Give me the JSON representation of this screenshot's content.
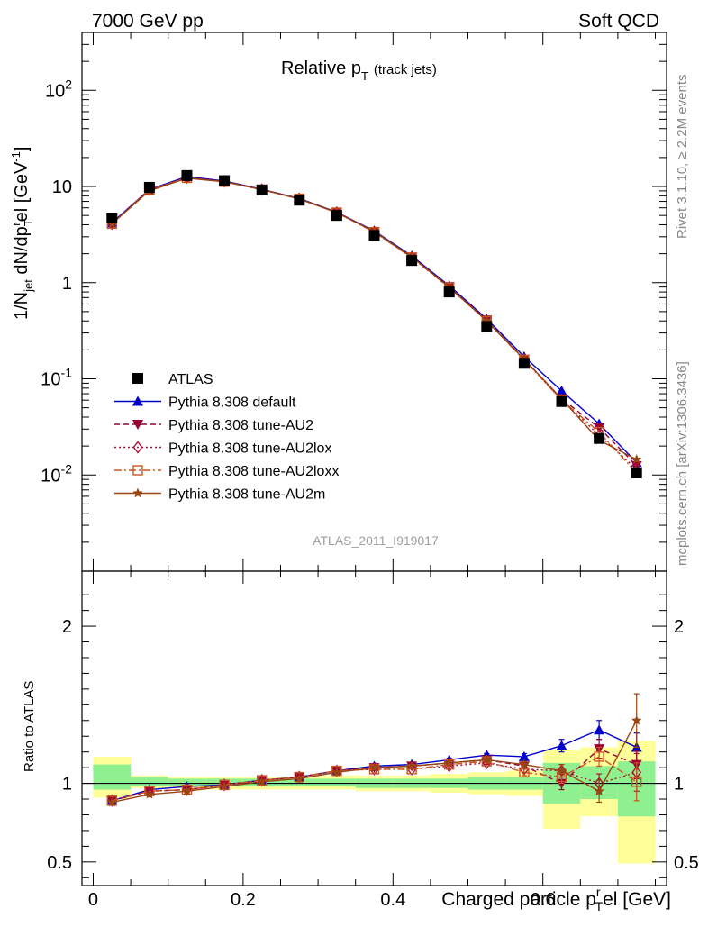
{
  "header": {
    "left": "7000 GeV pp",
    "right": "Soft QCD"
  },
  "side_labels": {
    "rivet": "Rivet 3.1.10, ≥ 2.2M events",
    "mcplots": "mcplots.cern.ch [arXiv:1306.3436]"
  },
  "watermark": "ATLAS_2011_I919017",
  "colors": {
    "ATLAS": "#000000",
    "default": "#0000cc",
    "AU2": "#990033",
    "AU2lox": "#aa1133",
    "AU2loxx": "#cc5522",
    "AU2m": "#994411",
    "band_inner": "#8ef08e",
    "band_outer": "#ffff99"
  },
  "chart_data": [
    {
      "type": "line",
      "panel": "main",
      "title": "Relative p_T (track jets)",
      "title_main": "Relative p",
      "title_sub": "T",
      "title_extra": "(track jets)",
      "ylabel": "1/N_jet dN/dp_T^rel [GeV^-1]",
      "yscale": "log",
      "ylim": [
        0.001,
        400
      ],
      "xlim": [
        -0.015,
        0.765
      ],
      "y_tick_labels": [
        "10^-2",
        "10^-1",
        "1",
        "10",
        "10^2"
      ],
      "legend_position": "bottom-left",
      "x": [
        0.025,
        0.075,
        0.125,
        0.175,
        0.225,
        0.275,
        0.325,
        0.375,
        0.425,
        0.475,
        0.525,
        0.575,
        0.625,
        0.675,
        0.725
      ],
      "series": [
        {
          "name": "ATLAS",
          "key": "ATLAS",
          "marker": "square",
          "line": "none",
          "values": [
            4.7,
            9.8,
            13.0,
            11.5,
            9.2,
            7.2,
            5.0,
            3.1,
            1.7,
            0.8,
            0.35,
            0.145,
            0.058,
            0.024,
            0.0105
          ]
        },
        {
          "name": "Pythia 8.308 default",
          "key": "default",
          "marker": "triangle-up",
          "line": "solid",
          "values": [
            4.2,
            9.3,
            12.7,
            11.4,
            9.35,
            7.5,
            5.4,
            3.45,
            1.9,
            0.93,
            0.42,
            0.17,
            0.075,
            0.034,
            0.0135
          ]
        },
        {
          "name": "Pythia 8.308 tune-AU2",
          "key": "AU2",
          "marker": "triangle-down",
          "line": "dashed",
          "values": [
            4.1,
            9.2,
            12.4,
            11.3,
            9.3,
            7.45,
            5.4,
            3.4,
            1.85,
            0.91,
            0.41,
            0.16,
            0.062,
            0.031,
            0.0125
          ]
        },
        {
          "name": "Pythia 8.308 tune-AU2lox",
          "key": "AU2lox",
          "marker": "diamond-open",
          "line": "dotted",
          "values": [
            4.1,
            9.3,
            12.4,
            11.3,
            9.3,
            7.45,
            5.35,
            3.38,
            1.83,
            0.89,
            0.4,
            0.16,
            0.06,
            0.026,
            0.0115
          ]
        },
        {
          "name": "Pythia 8.308 tune-AU2loxx",
          "key": "AU2loxx",
          "marker": "square-open",
          "line": "dashdot",
          "values": [
            4.1,
            9.2,
            12.3,
            11.2,
            9.25,
            7.45,
            5.35,
            3.35,
            1.82,
            0.89,
            0.4,
            0.157,
            0.06,
            0.028,
            0.0105
          ]
        },
        {
          "name": "Pythia 8.308 tune-AU2m",
          "key": "AU2m",
          "marker": "star",
          "line": "solid",
          "values": [
            4.1,
            9.0,
            12.2,
            11.2,
            9.3,
            7.4,
            5.35,
            3.4,
            1.85,
            0.9,
            0.4,
            0.16,
            0.062,
            0.023,
            0.0145
          ]
        }
      ]
    },
    {
      "type": "line",
      "panel": "ratio",
      "ylabel": "Ratio to ATLAS",
      "xlabel": "Charged particle p_T^rel [GeV]",
      "xlabel_main": "Charged particle p",
      "xlabel_sup": "r",
      "xlabel_sub": "T",
      "xlabel_tail": "el [GeV]",
      "ylim": [
        0.35,
        2.35
      ],
      "xlim": [
        -0.015,
        0.765
      ],
      "x_ticks": [
        0,
        0.2,
        0.4,
        0.6
      ],
      "x_tick_labels": [
        "0",
        "0.2",
        "0.4",
        "0.6"
      ],
      "y_ticks": [
        0.5,
        1,
        2
      ],
      "y_tick_labels": [
        "0.5",
        "1",
        "2"
      ],
      "bands": {
        "x_low": [
          0.0,
          0.05,
          0.1,
          0.15,
          0.2,
          0.25,
          0.3,
          0.35,
          0.4,
          0.45,
          0.5,
          0.55,
          0.6,
          0.65,
          0.7
        ],
        "x_high": [
          0.05,
          0.1,
          0.15,
          0.2,
          0.25,
          0.3,
          0.35,
          0.4,
          0.45,
          0.5,
          0.55,
          0.6,
          0.65,
          0.7,
          0.75
        ],
        "inner_low": [
          0.96,
          0.98,
          0.98,
          0.98,
          0.98,
          0.98,
          0.98,
          0.97,
          0.97,
          0.97,
          0.96,
          0.96,
          0.87,
          0.9,
          0.79
        ],
        "inner_high": [
          1.12,
          1.04,
          1.03,
          1.03,
          1.03,
          1.03,
          1.03,
          1.03,
          1.03,
          1.03,
          1.04,
          1.04,
          1.13,
          1.11,
          1.14
        ],
        "outer_low": [
          0.91,
          0.97,
          0.97,
          0.96,
          0.96,
          0.96,
          0.96,
          0.95,
          0.95,
          0.94,
          0.93,
          0.92,
          0.71,
          0.79,
          0.49
        ],
        "outer_high": [
          1.17,
          1.05,
          1.04,
          1.04,
          1.04,
          1.04,
          1.05,
          1.05,
          1.05,
          1.06,
          1.07,
          1.08,
          1.21,
          1.23,
          1.27
        ]
      },
      "x": [
        0.025,
        0.075,
        0.125,
        0.175,
        0.225,
        0.275,
        0.325,
        0.375,
        0.425,
        0.475,
        0.525,
        0.575,
        0.625,
        0.675,
        0.725
      ],
      "series": [
        {
          "name": "Pythia 8.308 default",
          "key": "default",
          "marker": "triangle-up",
          "line": "solid",
          "values": [
            0.89,
            0.96,
            0.98,
            0.99,
            1.02,
            1.04,
            1.08,
            1.11,
            1.12,
            1.15,
            1.18,
            1.17,
            1.24,
            1.34,
            1.23
          ],
          "err": [
            0,
            0,
            0,
            0,
            0,
            0,
            0,
            0,
            0,
            0.01,
            0.01,
            0.02,
            0.04,
            0.06,
            0.09
          ]
        },
        {
          "name": "Pythia 8.308 tune-AU2",
          "key": "AU2",
          "marker": "triangle-down",
          "line": "dashed",
          "values": [
            0.89,
            0.95,
            0.96,
            0.99,
            1.02,
            1.04,
            1.08,
            1.1,
            1.11,
            1.13,
            1.15,
            1.11,
            1.0,
            1.22,
            1.12
          ],
          "err": [
            0,
            0,
            0,
            0,
            0,
            0,
            0,
            0,
            0,
            0.01,
            0.01,
            0.02,
            0.04,
            0.06,
            0.09
          ]
        },
        {
          "name": "Pythia 8.308 tune-AU2lox",
          "key": "AU2lox",
          "marker": "diamond-open",
          "line": "dotted",
          "values": [
            0.89,
            0.95,
            0.96,
            0.99,
            1.02,
            1.04,
            1.08,
            1.09,
            1.09,
            1.11,
            1.13,
            1.09,
            1.08,
            1.0,
            1.07
          ],
          "err": [
            0,
            0,
            0,
            0,
            0,
            0,
            0,
            0,
            0,
            0.01,
            0.01,
            0.02,
            0.04,
            0.06,
            0.12
          ]
        },
        {
          "name": "Pythia 8.308 tune-AU2loxx",
          "key": "AU2loxx",
          "marker": "square-open",
          "line": "dashdot",
          "values": [
            0.89,
            0.95,
            0.96,
            0.99,
            1.02,
            1.04,
            1.08,
            1.09,
            1.09,
            1.12,
            1.14,
            1.07,
            1.04,
            1.17,
            1.01
          ],
          "err": [
            0,
            0,
            0,
            0,
            0,
            0,
            0,
            0,
            0,
            0.01,
            0.01,
            0.02,
            0.04,
            0.06,
            0.12
          ]
        },
        {
          "name": "Pythia 8.308 tune-AU2m",
          "key": "AU2m",
          "marker": "star",
          "line": "solid",
          "values": [
            0.88,
            0.93,
            0.95,
            0.98,
            1.01,
            1.03,
            1.07,
            1.1,
            1.11,
            1.13,
            1.15,
            1.12,
            1.08,
            0.95,
            1.4
          ],
          "err": [
            0,
            0,
            0,
            0,
            0,
            0,
            0,
            0,
            0,
            0.01,
            0.01,
            0.02,
            0.04,
            0.07,
            0.17
          ]
        }
      ]
    }
  ]
}
